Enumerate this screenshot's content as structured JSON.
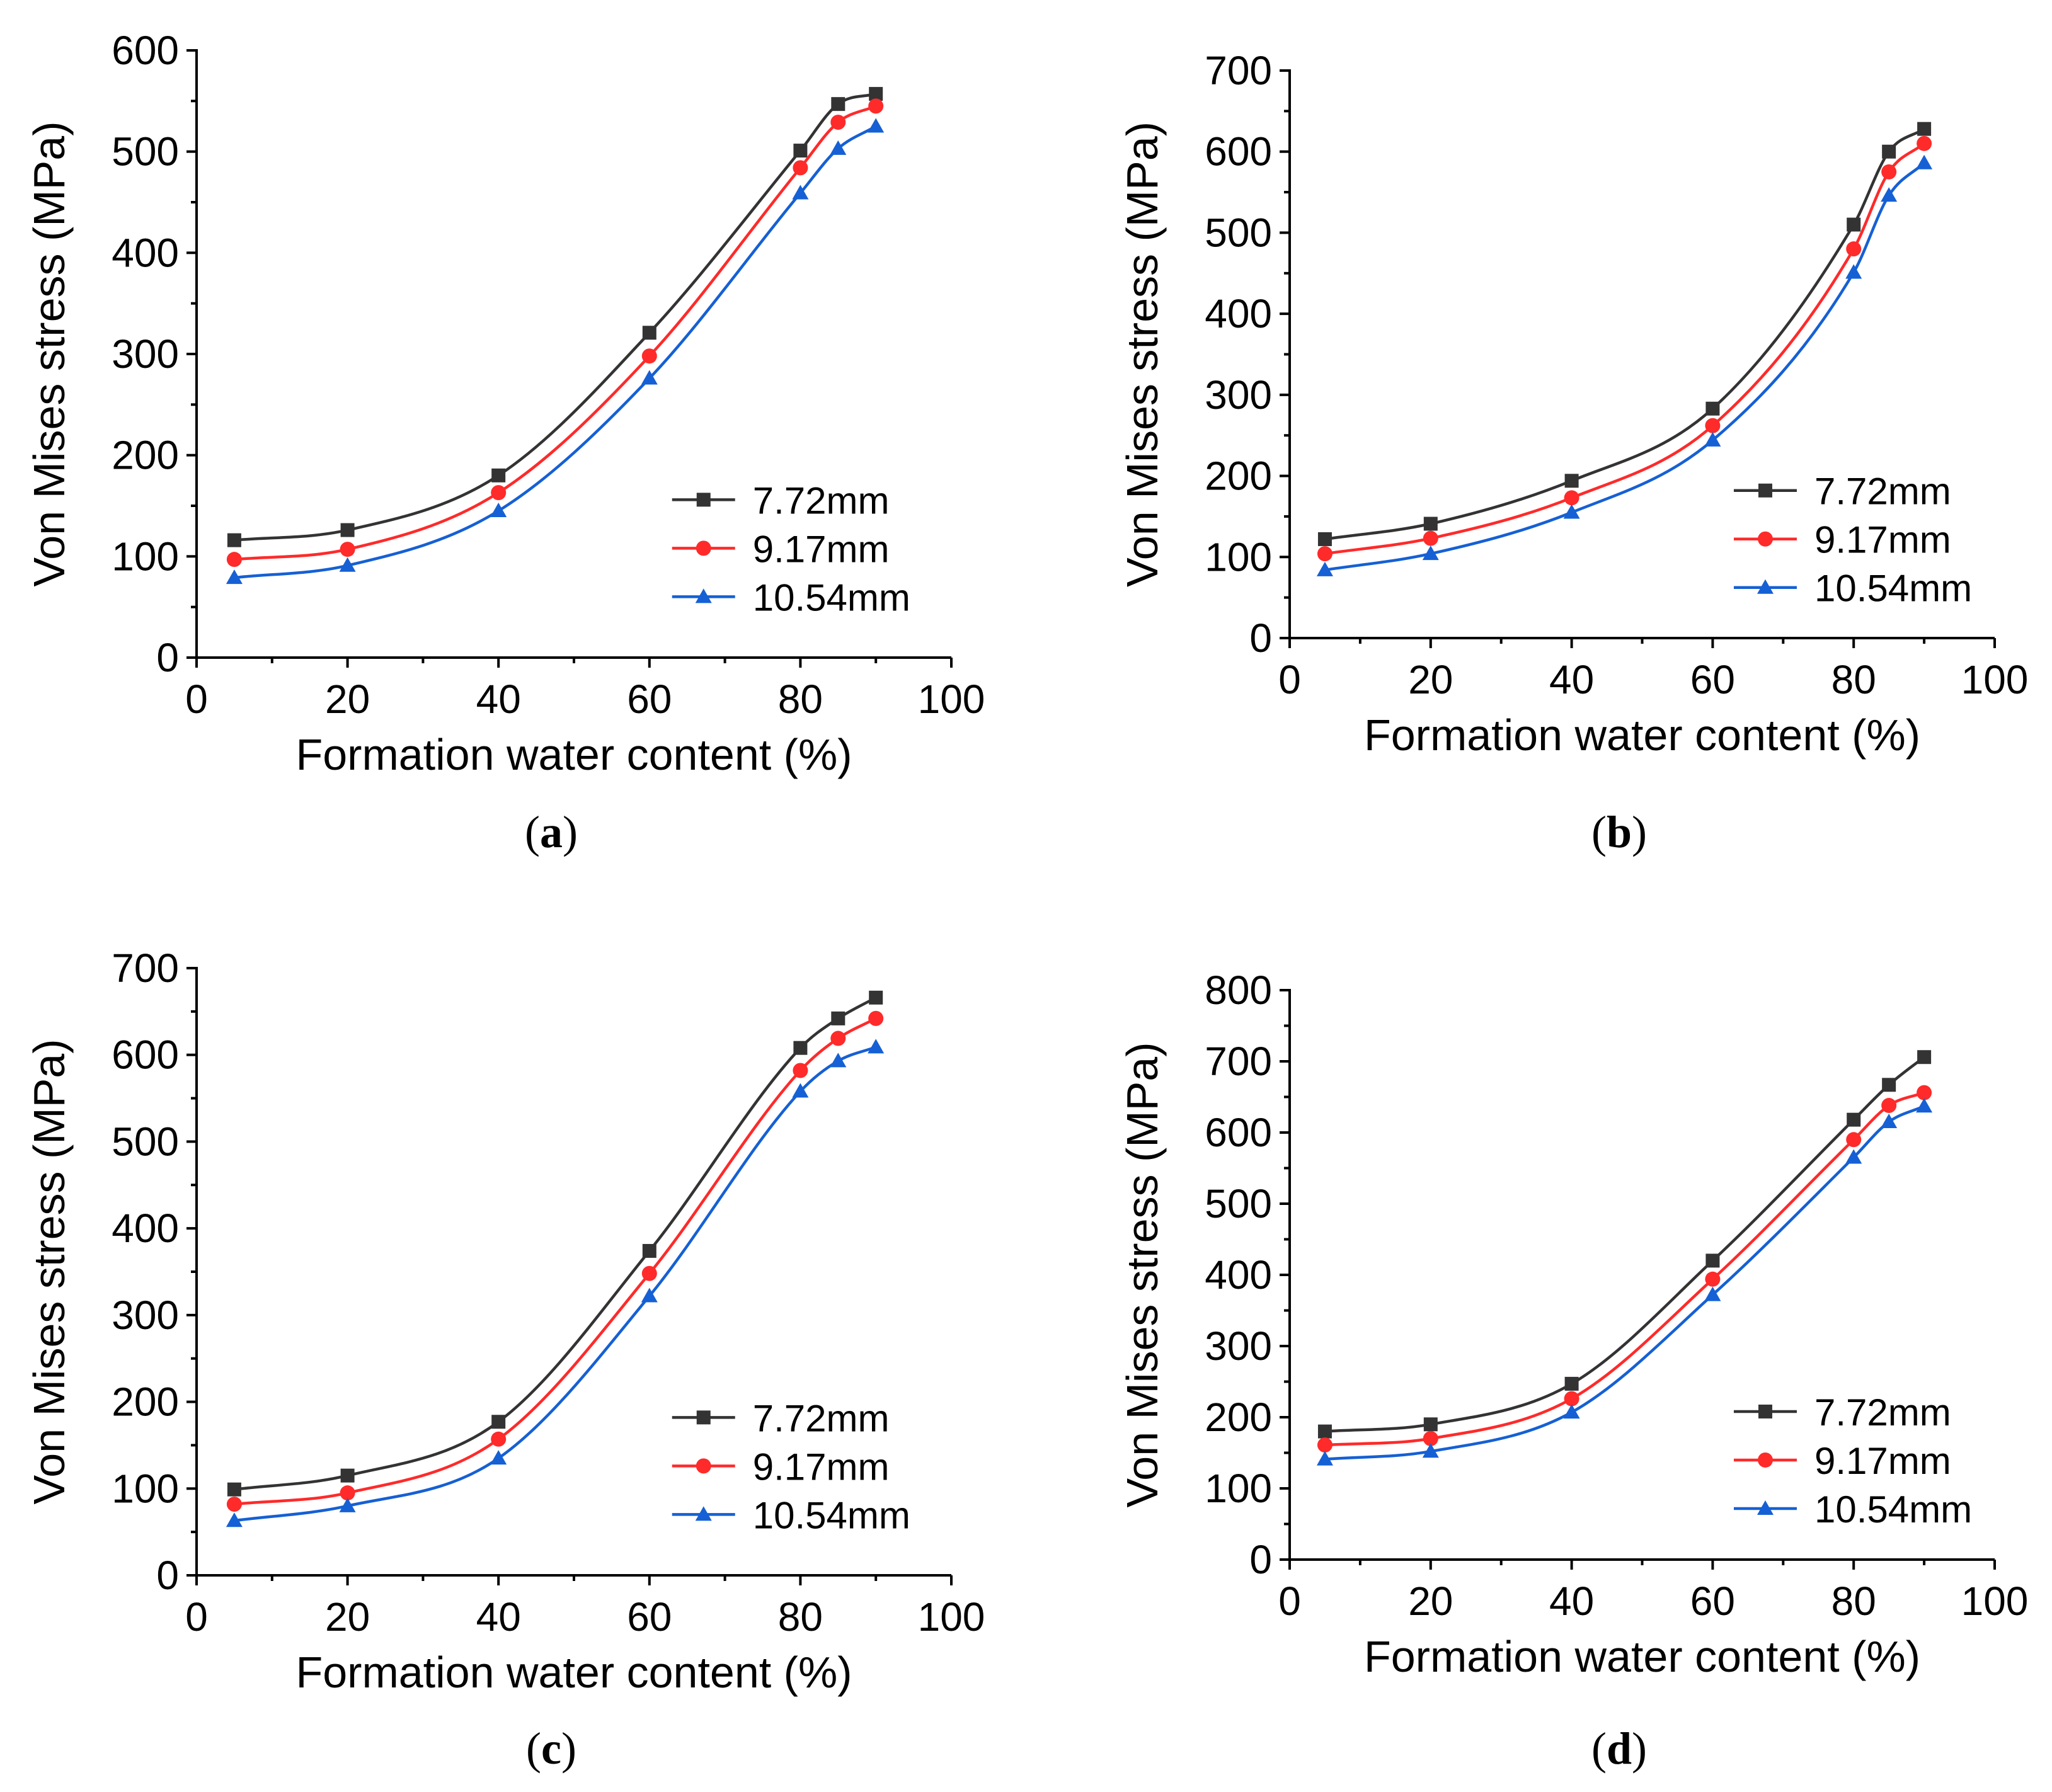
{
  "figure": {
    "series_names": [
      "7.72mm",
      "9.17mm",
      "10.54mm"
    ],
    "series_colors": [
      "#333333",
      "#ff2a2a",
      "#1560d4"
    ],
    "markers": [
      "square",
      "circle",
      "triangle"
    ]
  },
  "chart_data": [
    {
      "type": "line",
      "panel_label": "a",
      "xlabel": "Formation water content (%)",
      "ylabel": "Von Mises stress (MPa)",
      "xlim": [
        0,
        100
      ],
      "ylim": [
        0,
        600
      ],
      "xticks": [
        0,
        20,
        40,
        60,
        80,
        100
      ],
      "yticks": [
        0,
        100,
        200,
        300,
        400,
        500,
        600
      ],
      "x": [
        5,
        20,
        40,
        60,
        80,
        85,
        90
      ],
      "series": [
        {
          "name": "7.72mm",
          "values": [
            116,
            126,
            180,
            321,
            501,
            547,
            557
          ]
        },
        {
          "name": "9.17mm",
          "values": [
            97,
            107,
            163,
            298,
            484,
            529,
            545
          ]
        },
        {
          "name": "10.54mm",
          "values": [
            79,
            91,
            145,
            276,
            459,
            503,
            525
          ]
        }
      ]
    },
    {
      "type": "line",
      "panel_label": "b",
      "xlabel": "Formation water content (%)",
      "ylabel": "Von Mises stress (MPa)",
      "xlim": [
        0,
        100
      ],
      "ylim": [
        0,
        700
      ],
      "xticks": [
        0,
        20,
        40,
        60,
        80,
        100
      ],
      "yticks": [
        0,
        100,
        200,
        300,
        400,
        500,
        600,
        700
      ],
      "x": [
        5,
        20,
        40,
        60,
        80,
        85,
        90
      ],
      "series": [
        {
          "name": "7.72mm",
          "values": [
            122,
            141,
            194,
            283,
            510,
            600,
            628
          ]
        },
        {
          "name": "9.17mm",
          "values": [
            104,
            123,
            173,
            262,
            480,
            575,
            610
          ]
        },
        {
          "name": "10.54mm",
          "values": [
            84,
            104,
            155,
            244,
            451,
            546,
            586
          ]
        }
      ]
    },
    {
      "type": "line",
      "panel_label": "c",
      "xlabel": "Formation water content (%)",
      "ylabel": "Von Mises stress (MPa)",
      "xlim": [
        0,
        100
      ],
      "ylim": [
        0,
        700
      ],
      "xticks": [
        0,
        20,
        40,
        60,
        80,
        100
      ],
      "yticks": [
        0,
        100,
        200,
        300,
        400,
        500,
        600,
        700
      ],
      "x": [
        5,
        20,
        40,
        60,
        80,
        85,
        90
      ],
      "series": [
        {
          "name": "7.72mm",
          "values": [
            99,
            115,
            177,
            374,
            608,
            642,
            666
          ]
        },
        {
          "name": "9.17mm",
          "values": [
            82,
            95,
            157,
            348,
            582,
            619,
            642
          ]
        },
        {
          "name": "10.54mm",
          "values": [
            63,
            80,
            135,
            322,
            558,
            593,
            609
          ]
        }
      ]
    },
    {
      "type": "line",
      "panel_label": "d",
      "xlabel": "Formation water content (%)",
      "ylabel": "Von Mises stress (MPa)",
      "xlim": [
        0,
        100
      ],
      "ylim": [
        0,
        800
      ],
      "xticks": [
        0,
        20,
        40,
        60,
        80,
        100
      ],
      "yticks": [
        0,
        100,
        200,
        300,
        400,
        500,
        600,
        700,
        800
      ],
      "x": [
        5,
        20,
        40,
        60,
        80,
        85,
        90
      ],
      "series": [
        {
          "name": "7.72mm",
          "values": [
            180,
            190,
            247,
            420,
            618,
            667,
            706
          ]
        },
        {
          "name": "9.17mm",
          "values": [
            161,
            170,
            226,
            394,
            590,
            638,
            656
          ]
        },
        {
          "name": "10.54mm",
          "values": [
            141,
            152,
            207,
            372,
            565,
            615,
            637
          ]
        }
      ]
    }
  ]
}
